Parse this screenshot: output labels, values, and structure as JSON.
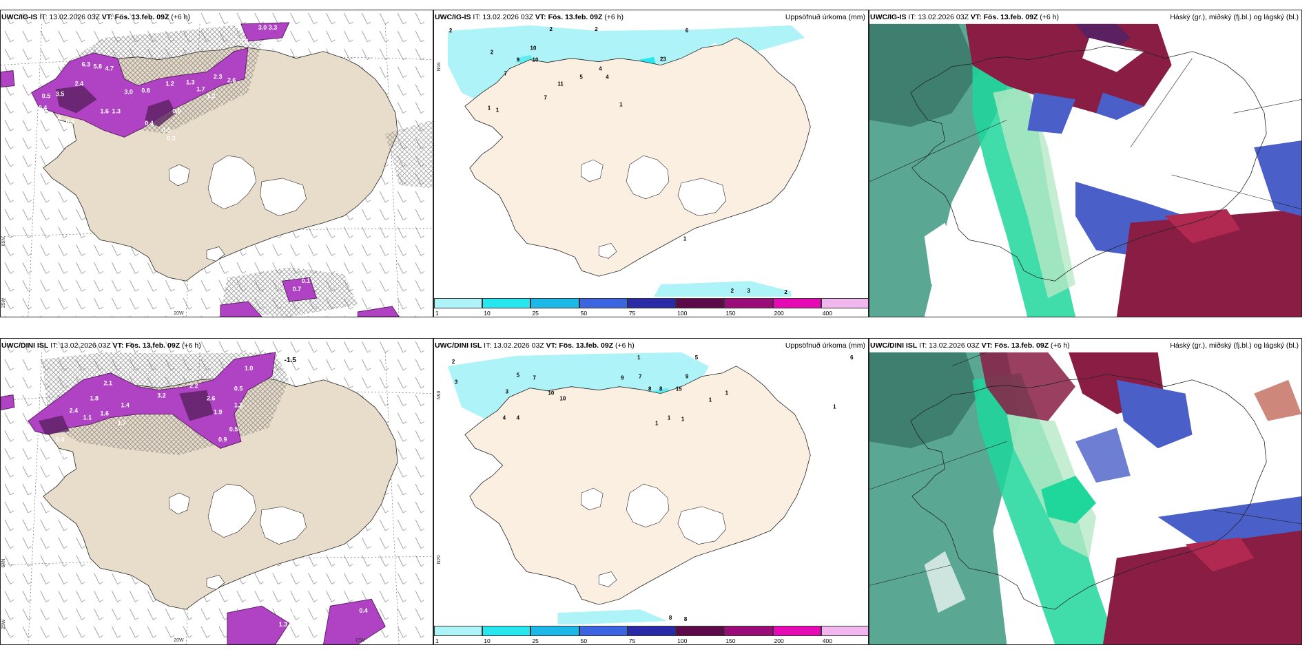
{
  "colors": {
    "land": "#e8dccb",
    "land_light": "#fbefe2",
    "snow": "#ffffff",
    "precip_light": "#aef3f7",
    "precip_cyan": "#28e6ee",
    "magenta": "#b043c4",
    "purple_dark": "#5a2060",
    "cloud_teal": "#5aa894",
    "cloud_green": "#1fd79b",
    "cloud_maroon": "#8a1d44",
    "cloud_blue": "#4a5fc8"
  },
  "panels": {
    "p1": {
      "model": "UWC/IG-IS",
      "it": "IT: 13.02.2026 03Z",
      "vt": "VT: Fös. 13.feb. 09Z",
      "lead": "(+6 h)"
    },
    "p2": {
      "model": "UWC/IG-IS",
      "it": "IT: 13.02.2026 03Z",
      "vt": "VT: Fös. 13.feb. 09Z",
      "lead": "(+6 h)",
      "right": "Uppsöfnuð úrkoma (mm)"
    },
    "p3": {
      "model": "UWC/IG-IS",
      "it": "IT: 13.02.2026 03Z",
      "vt": "VT: Fös. 13.feb. 09Z",
      "lead": "(+6 h)",
      "right": "Háský (gr.), miðský (fj.bl.) og lágský (bl.)"
    },
    "p4": {
      "model": "UWC/DINI ISL",
      "it": "IT: 13.02.2026 03Z",
      "vt": "VT: Fös. 13.feb. 09Z",
      "lead": "(+6 h)"
    },
    "p5": {
      "model": "UWC/DINI ISL",
      "it": "IT: 13.02.2026 03Z",
      "vt": "VT: Fös. 13.feb. 09Z",
      "lead": "(+6 h)",
      "right": "Uppsöfnuð úrkoma (mm)"
    },
    "p6": {
      "model": "UWC/DINI ISL",
      "it": "IT: 13.02.2026 03Z",
      "vt": "VT: Fös. 13.feb. 09Z",
      "lead": "(+6 h)",
      "right": "Háský (gr.), miðský (fj.bl.) og lágský (bl.)"
    }
  },
  "colorbar": {
    "ticks": [
      "1",
      "10",
      "25",
      "50",
      "75",
      "100",
      "150",
      "200",
      "400"
    ],
    "colors": [
      "#aef3f7",
      "#28e6ee",
      "#1bb8e8",
      "#3a64e0",
      "#2a2aa8",
      "#5c0a4a",
      "#9a0c78",
      "#e60ab4",
      "#f2b6ee"
    ]
  },
  "gridlabels": {
    "lat65": "65N",
    "lat64": "64N",
    "lon25": "25W",
    "lon20": "20W",
    "lon15": "15W"
  },
  "p1_labels": [
    "3.0",
    "3.3",
    "0.8",
    "6.3",
    "5.8",
    "4.7",
    "3.5",
    "2.4",
    "3.0",
    "0.8",
    "1.2",
    "1.3",
    "1.7",
    "1.2",
    "2.3",
    "2.6",
    "0.5",
    "1.6",
    "1.3",
    "0.4",
    "0.4",
    "0.6",
    "0.4",
    "0.9",
    "0.5",
    "0.3",
    "0.7",
    "0.1"
  ],
  "p2_labels": [
    "2",
    "2",
    "2",
    "6",
    "2",
    "10",
    "9",
    "10",
    "7",
    "11",
    "5",
    "4",
    "4",
    "23",
    "1",
    "1",
    "7",
    "1",
    "1",
    "2",
    "3",
    "2"
  ],
  "p4_labels": [
    "-1.5",
    "1.0",
    "2.1",
    "3.2",
    "2.2",
    "1.8",
    "1.4",
    "0.5",
    "0.4",
    "1.1",
    "1.9",
    "1.7",
    "2.6",
    "1.6",
    "2.4",
    "1.2",
    "0.5",
    "0.9",
    "0.4",
    "0.3",
    "1.3",
    "0.5",
    "0.4",
    "0.7"
  ],
  "p5_labels": [
    "2",
    "3",
    "1",
    "5",
    "6",
    "5",
    "7",
    "3",
    "10",
    "10",
    "9",
    "7",
    "8",
    "8",
    "9",
    "15",
    "1",
    "1",
    "1",
    "1",
    "1",
    "4",
    "4",
    "8",
    "8",
    "1"
  ]
}
